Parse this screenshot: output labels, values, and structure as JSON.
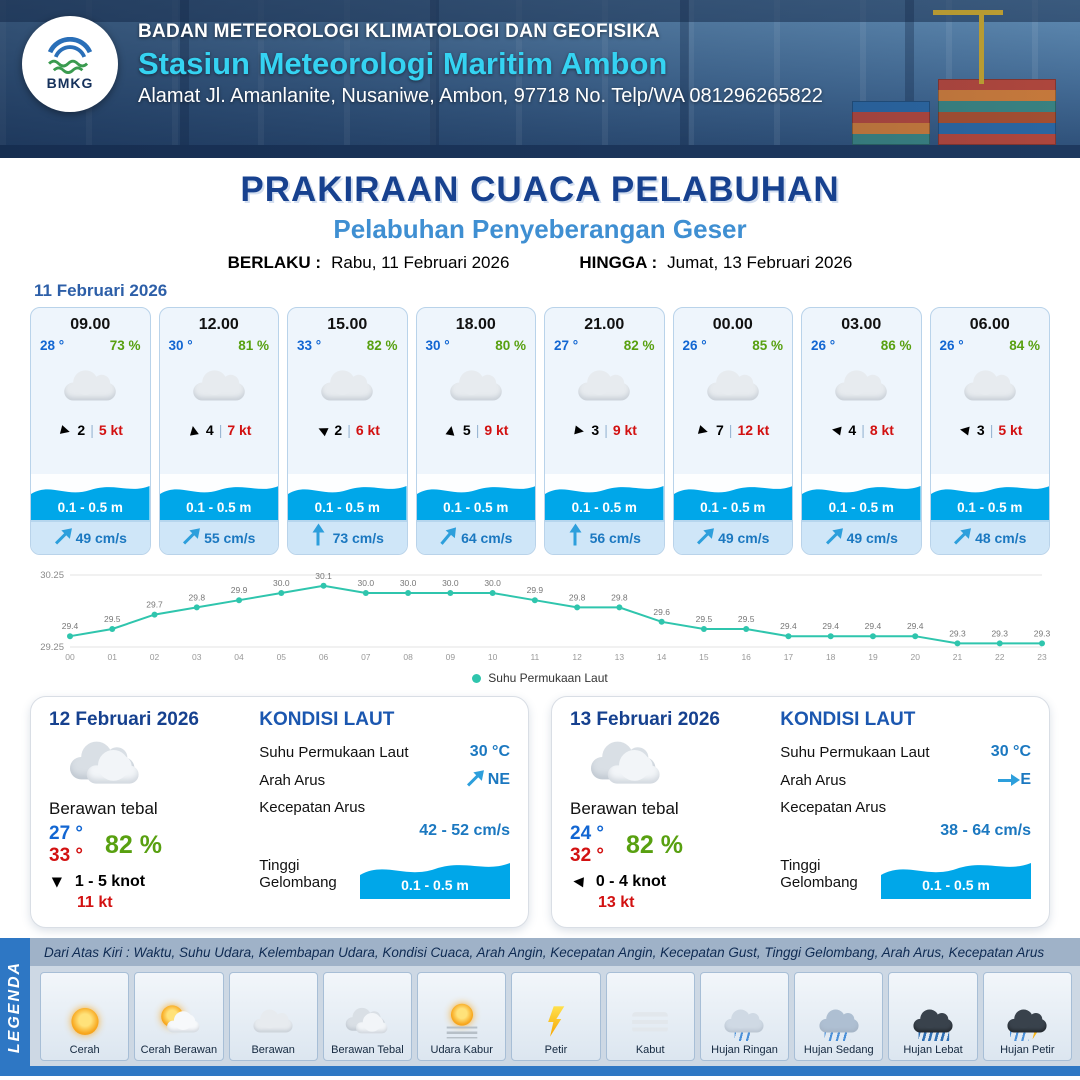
{
  "colors": {
    "accent_blue": "#17418f",
    "subtitle_blue": "#3f8fd2",
    "wave_blue": "#00a7e9",
    "temp_blue": "#1266d2",
    "humidity_green": "#58a010",
    "alert_red": "#d21111",
    "chart_line_teal": "#2fc5ad",
    "legend_bar_blue": "#2e77c4"
  },
  "header": {
    "logo_text": "BMKG",
    "org_line": "BADAN METEOROLOGI KLIMATOLOGI DAN GEOFISIKA",
    "station_line": "Stasiun Meteorologi Maritim Ambon",
    "address_line": "Alamat Jl. Amanlanite, Nusaniwe, Ambon, 97718   No. Telp/WA  081296265822"
  },
  "title": {
    "main": "PRAKIRAAN CUACA PELABUHAN",
    "subtitle": "Pelabuhan Penyeberangan Geser",
    "valid_from_label": "BERLAKU :",
    "valid_from": "Rabu, 11 Februari 2026",
    "valid_to_label": "HINGGA :",
    "valid_to": "Jumat, 13 Februari 2026"
  },
  "hourly": {
    "date": "11 Februari 2026",
    "cards": [
      {
        "time": "09.00",
        "temp": "28 °",
        "humidity": "73 %",
        "icon": "berawan",
        "wind_dir_deg": 15,
        "wind_gust": "2",
        "wind_speed": "5 kt",
        "wave": "0.1 - 0.5 m",
        "current_dir_deg": -45,
        "current_speed": "49 cm/s"
      },
      {
        "time": "12.00",
        "temp": "30 °",
        "humidity": "81 %",
        "icon": "berawan",
        "wind_dir_deg": -100,
        "wind_gust": "4",
        "wind_speed": "7 kt",
        "wave": "0.1 - 0.5 m",
        "current_dir_deg": -45,
        "current_speed": "55 cm/s"
      },
      {
        "time": "15.00",
        "temp": "33 °",
        "humidity": "82 %",
        "icon": "berawan",
        "wind_dir_deg": -155,
        "wind_gust": "2",
        "wind_speed": "6 kt",
        "wave": "0.1 - 0.5 m",
        "current_dir_deg": -90,
        "current_speed": "73 cm/s"
      },
      {
        "time": "18.00",
        "temp": "30 °",
        "humidity": "80 %",
        "icon": "berawan",
        "wind_dir_deg": -80,
        "wind_gust": "5",
        "wind_speed": "9 kt",
        "wave": "0.1 - 0.5 m",
        "current_dir_deg": -50,
        "current_speed": "64 cm/s"
      },
      {
        "time": "21.00",
        "temp": "27 °",
        "humidity": "82 %",
        "icon": "berawan",
        "wind_dir_deg": 10,
        "wind_gust": "3",
        "wind_speed": "9 kt",
        "wave": "0.1 - 0.5 m",
        "current_dir_deg": -90,
        "current_speed": "56 cm/s"
      },
      {
        "time": "00.00",
        "temp": "26 °",
        "humidity": "85 %",
        "icon": "berawan",
        "wind_dir_deg": 15,
        "wind_gust": "7",
        "wind_speed": "12 kt",
        "wave": "0.1 - 0.5 m",
        "current_dir_deg": -45,
        "current_speed": "49 cm/s"
      },
      {
        "time": "03.00",
        "temp": "26 °",
        "humidity": "86 %",
        "icon": "berawan",
        "wind_dir_deg": -170,
        "wind_gust": "4",
        "wind_speed": "8 kt",
        "wave": "0.1 - 0.5 m",
        "current_dir_deg": -45,
        "current_speed": "49 cm/s"
      },
      {
        "time": "06.00",
        "temp": "26 °",
        "humidity": "84 %",
        "icon": "berawan",
        "wind_dir_deg": -170,
        "wind_gust": "3",
        "wind_speed": "5 kt",
        "wave": "0.1 - 0.5 m",
        "current_dir_deg": -45,
        "current_speed": "48 cm/s"
      }
    ]
  },
  "chart_data": {
    "type": "line",
    "title": "",
    "xlabel": "",
    "ylabel": "",
    "x": [
      "00",
      "01",
      "02",
      "03",
      "04",
      "05",
      "06",
      "07",
      "08",
      "09",
      "10",
      "11",
      "12",
      "13",
      "14",
      "15",
      "16",
      "17",
      "18",
      "19",
      "20",
      "21",
      "22",
      "23"
    ],
    "series": [
      {
        "name": "Suhu Permukaan Laut",
        "values": [
          29.4,
          29.5,
          29.7,
          29.8,
          29.9,
          30.0,
          30.1,
          30.0,
          30.0,
          30.0,
          30.0,
          29.9,
          29.8,
          29.8,
          29.6,
          29.5,
          29.5,
          29.4,
          29.4,
          29.4,
          29.4,
          29.3,
          29.3,
          29.3
        ]
      }
    ],
    "ylim": [
      29.25,
      30.25
    ],
    "yticks": [
      30.25,
      29.25
    ],
    "line_color": "#2fc5ad",
    "grid": true,
    "legend_position": "bottom"
  },
  "sea_labels": {
    "title": "KONDISI LAUT",
    "sst": "Suhu Permukaan Laut",
    "dir": "Arah Arus",
    "speed": "Kecepatan Arus",
    "wave": "Tinggi Gelombang"
  },
  "daily": [
    {
      "date": "12 Februari 2026",
      "icon": "berawan-tebal",
      "condition": "Berawan tebal",
      "temp_min": "27 °",
      "temp_max": "33 °",
      "humidity": "82 %",
      "wind_dir_deg": 90,
      "wind_range": "1 - 5 knot",
      "wind_gust": "11 kt",
      "sea": {
        "sst": "30 °C",
        "current_dir": "NE",
        "current_dir_deg": -45,
        "current_speed": "42 - 52 cm/s",
        "wave": "0.1 - 0.5 m"
      }
    },
    {
      "date": "13 Februari 2026",
      "icon": "berawan-tebal",
      "condition": "Berawan tebal",
      "temp_min": "24 °",
      "temp_max": "32 °",
      "humidity": "82 %",
      "wind_dir_deg": 185,
      "wind_range": "0 - 4 knot",
      "wind_gust": "13 kt",
      "sea": {
        "sst": "30 °C",
        "current_dir": "E",
        "current_dir_deg": 0,
        "current_speed": "38 - 64 cm/s",
        "wave": "0.1 - 0.5 m"
      }
    }
  ],
  "legend": {
    "band_label": "LEGENDA",
    "description": "Dari Atas Kiri : Waktu, Suhu Udara, Kelembapan Udara, Kondisi Cuaca, Arah Angin, Kecepatan Angin, Kecepatan Gust, Tinggi Gelombang, Arah Arus, Kecepatan Arus",
    "items": [
      {
        "label": "Cerah",
        "icon": "cerah"
      },
      {
        "label": "Cerah Berawan",
        "icon": "cerah-berawan"
      },
      {
        "label": "Berawan",
        "icon": "berawan"
      },
      {
        "label": "Berawan Tebal",
        "icon": "berawan-tebal"
      },
      {
        "label": "Udara Kabur",
        "icon": "udara-kabur"
      },
      {
        "label": "Petir",
        "icon": "petir"
      },
      {
        "label": "Kabut",
        "icon": "kabut"
      },
      {
        "label": "Hujan Ringan",
        "icon": "hujan-ringan"
      },
      {
        "label": "Hujan Sedang",
        "icon": "hujan-sedang"
      },
      {
        "label": "Hujan Lebat",
        "icon": "hujan-lebat"
      },
      {
        "label": "Hujan Petir",
        "icon": "hujan-petir"
      }
    ]
  }
}
